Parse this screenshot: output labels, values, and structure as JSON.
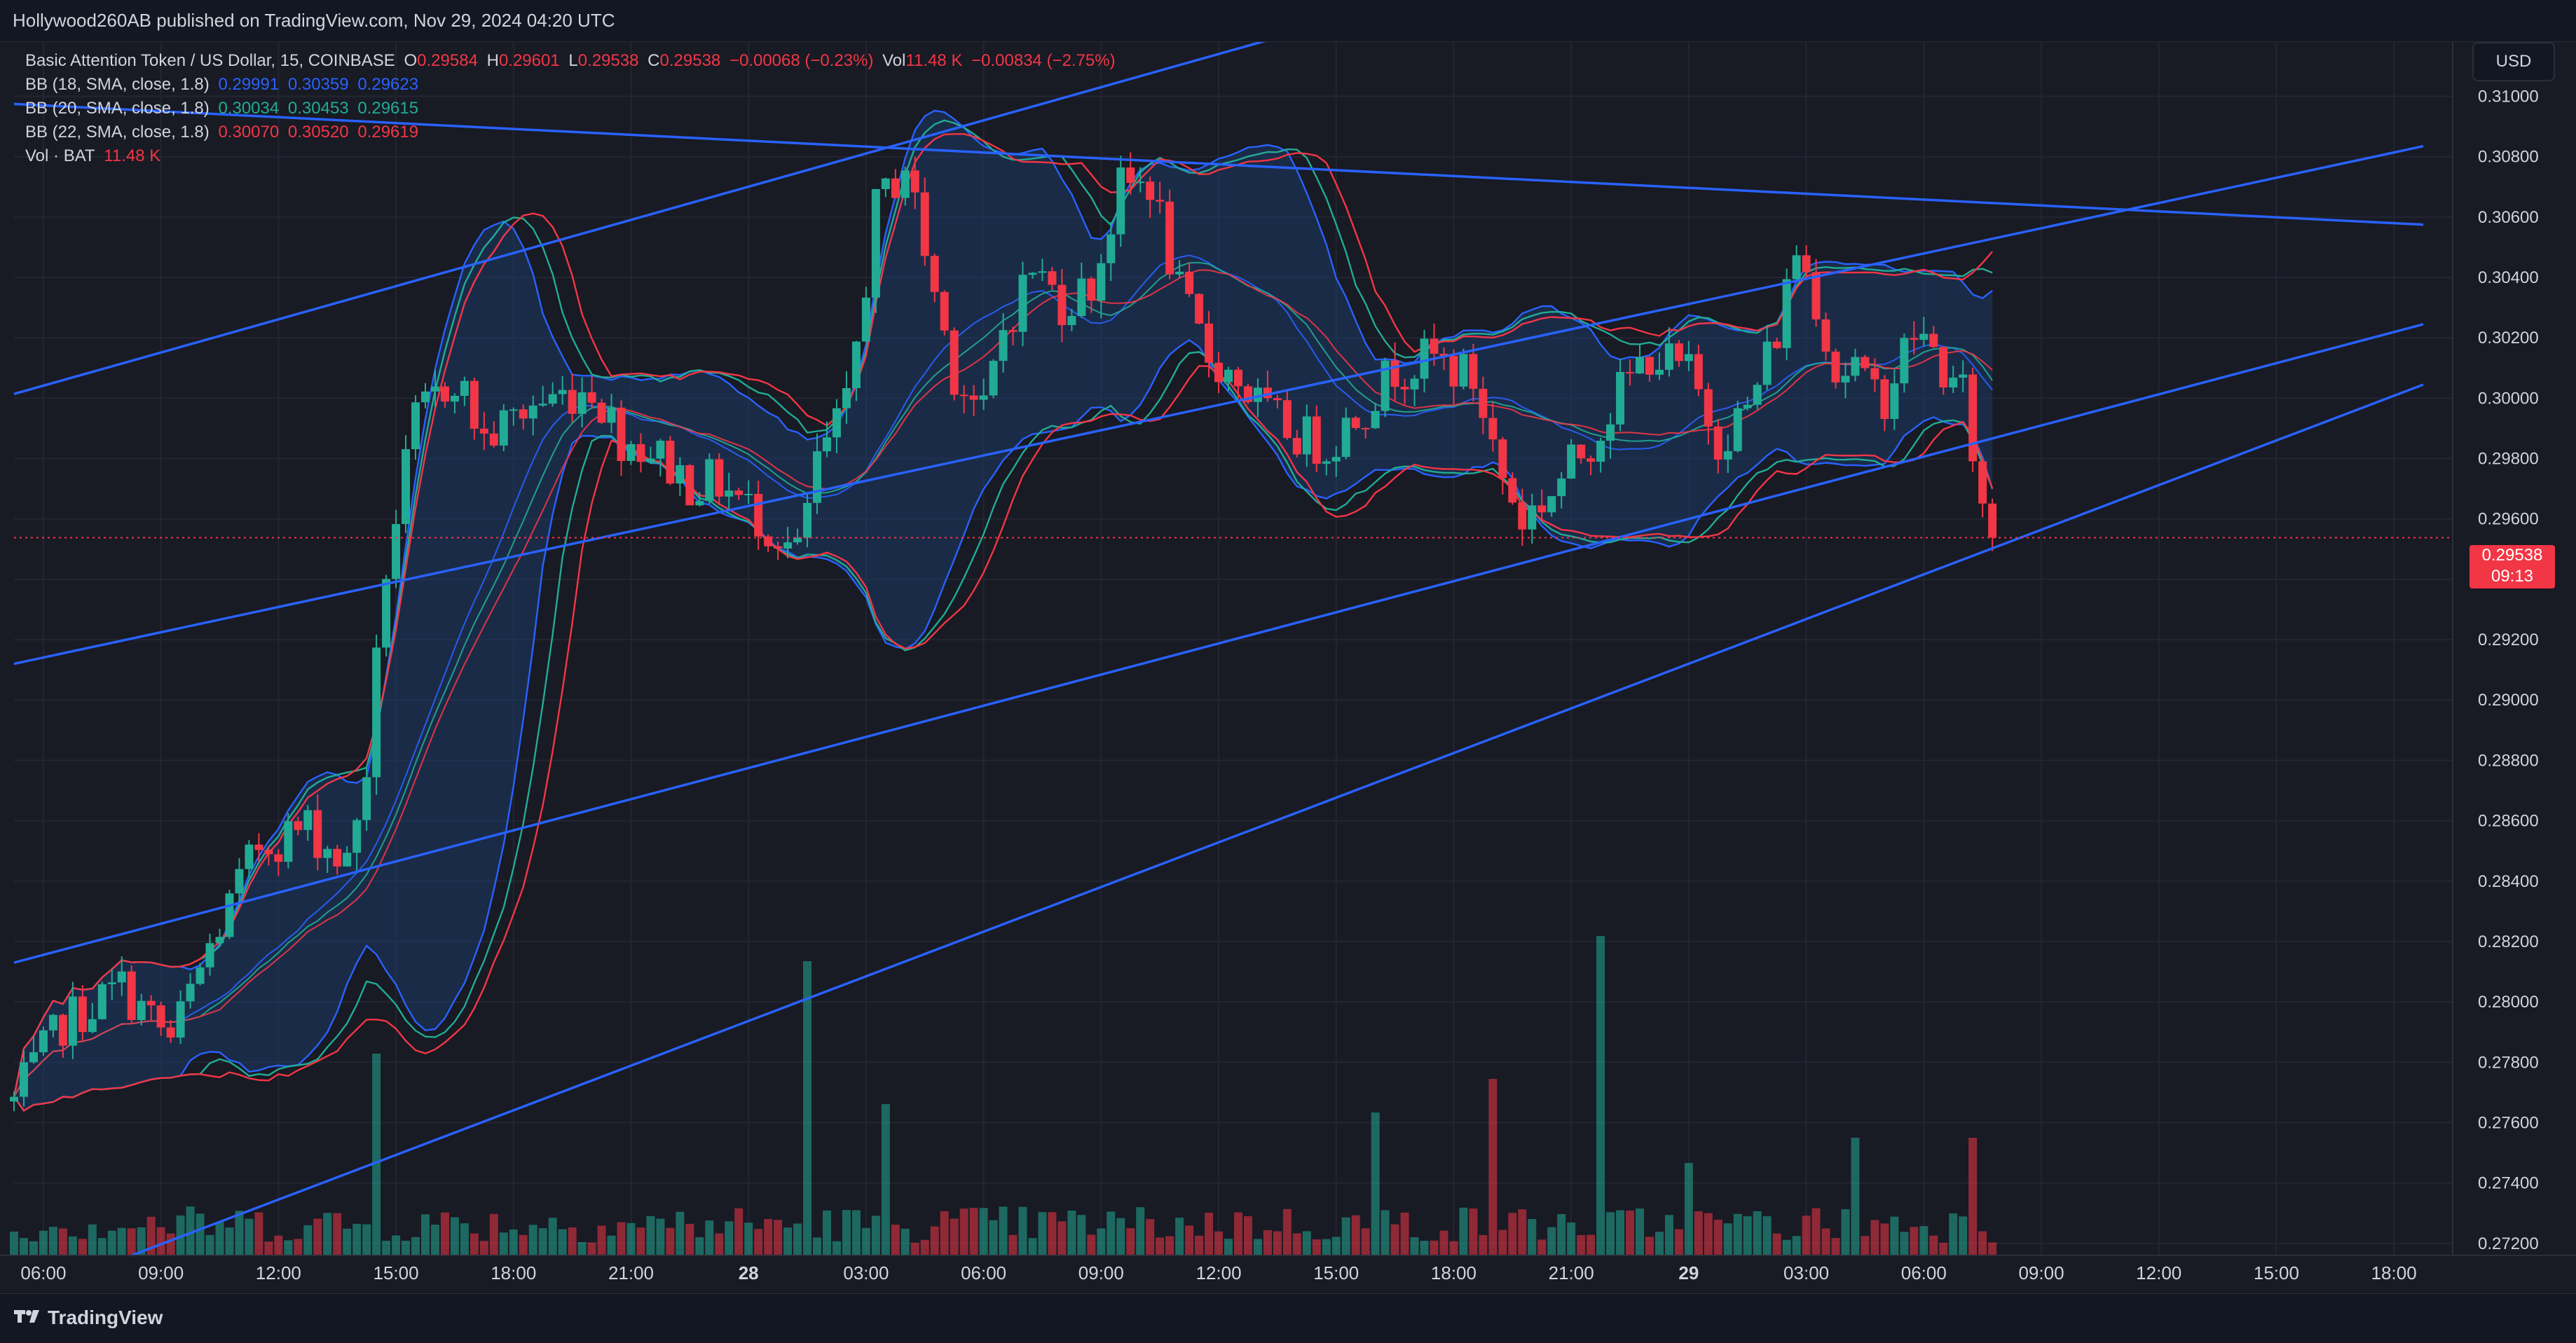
{
  "header": {
    "publisher": "Hollywood260AB published on TradingView.com, Nov 29, 2024 04:20 UTC"
  },
  "legend": {
    "symbol": "Basic Attention Token / US Dollar, 15, COINBASE",
    "o_label": "O",
    "o": "0.29584",
    "h_label": "H",
    "h": "0.29601",
    "l_label": "L",
    "l": "0.29538",
    "c_label": "C",
    "c": "0.29538",
    "change": "−0.00068 (−0.23%)",
    "vol_label": "Vol",
    "vol": "11.48 K",
    "vol_change": "−0.00834 (−2.75%)",
    "bb1": {
      "label": "BB (18, SMA, close, 1.8)",
      "basis": "0.29991",
      "upper": "0.30359",
      "lower": "0.29623",
      "color": "#2962ff"
    },
    "bb2": {
      "label": "BB (20, SMA, close, 1.8)",
      "basis": "0.30034",
      "upper": "0.30453",
      "lower": "0.29615",
      "color": "#22ab94"
    },
    "bb3": {
      "label": "BB (22, SMA, close, 1.8)",
      "basis": "0.30070",
      "upper": "0.30520",
      "lower": "0.29619",
      "color": "#f23645"
    },
    "vol_ind": {
      "label": "Vol · BAT",
      "value": "11.48 K"
    }
  },
  "currency_button": "USD",
  "current_price": {
    "price": "0.29538",
    "countdown": "09:13"
  },
  "footer": {
    "brand": "TradingView"
  },
  "colors": {
    "up": "#22ab94",
    "down": "#f23645",
    "trendline": "#2962ff",
    "band_fill": "#1e3a66",
    "grid": "#232632"
  },
  "chart_data": {
    "type": "candlestick",
    "title": "Basic Attention Token / US Dollar, 15, COINBASE",
    "xlabel": "",
    "ylabel": "",
    "ylim": [
      0.2716,
      0.3118
    ],
    "y_ticks": [
      "0.31000",
      "0.30800",
      "0.30600",
      "0.30400",
      "0.30200",
      "0.30000",
      "0.29800",
      "0.29600",
      "0.29400",
      "0.29200",
      "0.29000",
      "0.28800",
      "0.28600",
      "0.28400",
      "0.28200",
      "0.28000",
      "0.27800",
      "0.27600",
      "0.27400",
      "0.27200"
    ],
    "x_ticks": [
      {
        "label": "06:00",
        "bold": false
      },
      {
        "label": "09:00",
        "bold": false
      },
      {
        "label": "12:00",
        "bold": false
      },
      {
        "label": "15:00",
        "bold": false
      },
      {
        "label": "18:00",
        "bold": false
      },
      {
        "label": "21:00",
        "bold": false
      },
      {
        "label": "28",
        "bold": true
      },
      {
        "label": "03:00",
        "bold": false
      },
      {
        "label": "06:00",
        "bold": false
      },
      {
        "label": "09:00",
        "bold": false
      },
      {
        "label": "12:00",
        "bold": false
      },
      {
        "label": "15:00",
        "bold": false
      },
      {
        "label": "18:00",
        "bold": false
      },
      {
        "label": "21:00",
        "bold": false
      },
      {
        "label": "29",
        "bold": true
      },
      {
        "label": "03:00",
        "bold": false
      },
      {
        "label": "06:00",
        "bold": false
      },
      {
        "label": "09:00",
        "bold": false
      },
      {
        "label": "12:00",
        "bold": false
      },
      {
        "label": "15:00",
        "bold": false
      },
      {
        "label": "18:00",
        "bold": false
      }
    ],
    "hour_range": [
      5.25,
      67.5
    ],
    "bars_hours": [
      5.25,
      52.5
    ],
    "close_key_points": [
      [
        5.25,
        0.2767
      ],
      [
        6.5,
        0.2793
      ],
      [
        8,
        0.2805
      ],
      [
        9.25,
        0.2787
      ],
      [
        10.25,
        0.2818
      ],
      [
        11.5,
        0.2852
      ],
      [
        12.75,
        0.2858
      ],
      [
        13.75,
        0.2845
      ],
      [
        14.25,
        0.2878
      ],
      [
        14.75,
        0.2944
      ],
      [
        15.5,
        0.2992
      ],
      [
        16.5,
        0.3008
      ],
      [
        17.25,
        0.2986
      ],
      [
        18.5,
        0.2998
      ],
      [
        20,
        0.3004
      ],
      [
        20.75,
        0.2987
      ],
      [
        21.5,
        0.2983
      ],
      [
        22.5,
        0.2972
      ],
      [
        23.25,
        0.2972
      ],
      [
        24.5,
        0.2958
      ],
      [
        25.25,
        0.2948
      ],
      [
        25.75,
        0.2978
      ],
      [
        26.5,
        0.2996
      ],
      [
        27.25,
        0.3062
      ],
      [
        28,
        0.3078
      ],
      [
        28.75,
        0.3035
      ],
      [
        29.25,
        0.3009
      ],
      [
        30,
        0.2994
      ],
      [
        30.5,
        0.3023
      ],
      [
        31.25,
        0.3043
      ],
      [
        32,
        0.3032
      ],
      [
        32.75,
        0.3037
      ],
      [
        33.5,
        0.3069
      ],
      [
        34.25,
        0.3072
      ],
      [
        35,
        0.3034
      ],
      [
        35.75,
        0.3014
      ],
      [
        36.5,
        0.3006
      ],
      [
        37.25,
        0.2994
      ],
      [
        38,
        0.2988
      ],
      [
        38.75,
        0.2984
      ],
      [
        39.75,
        0.2998
      ],
      [
        40.5,
        0.301
      ],
      [
        41.5,
        0.3013
      ],
      [
        42.5,
        0.3006
      ],
      [
        43.25,
        0.2974
      ],
      [
        43.75,
        0.296
      ],
      [
        44.5,
        0.2969
      ],
      [
        45.5,
        0.2986
      ],
      [
        46.25,
        0.3002
      ],
      [
        47,
        0.3015
      ],
      [
        48,
        0.3008
      ],
      [
        48.75,
        0.2987
      ],
      [
        49.5,
        0.2996
      ],
      [
        50.25,
        0.3022
      ],
      [
        50.75,
        0.305
      ],
      [
        51.25,
        0.3034
      ],
      [
        51.75,
        0.3008
      ],
      [
        52.25,
        0.3011
      ],
      [
        52.5,
        0.3003
      ],
      [
        53,
        0.3001
      ],
      [
        53.75,
        0.3022
      ],
      [
        54.25,
        0.3015
      ],
      [
        54.75,
        0.3003
      ],
      [
        55,
        0.3001
      ],
      [
        55.25,
        0.2983
      ],
      [
        55.5,
        0.2963
      ],
      [
        55.75,
        0.2954
      ]
    ],
    "volume_spikes": [
      {
        "hour": 14.5,
        "volume": 24000
      },
      {
        "hour": 25.5,
        "volume": 35000
      },
      {
        "hour": 27.5,
        "volume": 18000
      },
      {
        "hour": 40,
        "volume": 17000
      },
      {
        "hour": 43,
        "volume": 21000
      },
      {
        "hour": 45.75,
        "volume": 38000
      },
      {
        "hour": 48,
        "volume": 11000
      },
      {
        "hour": 52.25,
        "volume": 14000
      },
      {
        "hour": 55.25,
        "volume": 14000
      }
    ],
    "trendlines": [
      {
        "from": [
          5.25,
          0.30014
        ],
        "to": [
          42.0,
          0.3136
        ]
      },
      {
        "from": [
          5.25,
          0.30975
        ],
        "to": [
          66.75,
          0.30575
        ]
      },
      {
        "from": [
          5.25,
          0.2912
        ],
        "to": [
          66.75,
          0.30835
        ]
      },
      {
        "from": [
          5.25,
          0.2813
        ],
        "to": [
          66.75,
          0.30245
        ]
      },
      {
        "from": [
          8.25,
          0.2716
        ],
        "to": [
          66.75,
          0.30045
        ]
      }
    ],
    "bollinger_bands": [
      {
        "name": "BB (18, SMA, close, 1.8)",
        "length": 18,
        "mult": 1.8,
        "color": "#2962ff"
      },
      {
        "name": "BB (20, SMA, close, 1.8)",
        "length": 20,
        "mult": 1.8,
        "color": "#22ab94"
      },
      {
        "name": "BB (22, SMA, close, 1.8)",
        "length": 22,
        "mult": 1.8,
        "color": "#f23645"
      }
    ],
    "last_price": 0.29538,
    "grid": true
  }
}
